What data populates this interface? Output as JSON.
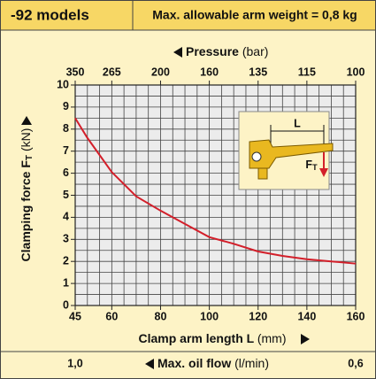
{
  "chart_data": {
    "type": "line",
    "header": {
      "model": "-92 models",
      "note": "Max. allowable arm weight = 0,8 kg"
    },
    "x_label": "Clamp arm length L",
    "x_unit": "(mm)",
    "y_label": "Clamping force F",
    "y_label_sub": "T",
    "y_unit": "(kN)",
    "x2_label": "Pressure",
    "x2_unit": "(bar)",
    "x3_label": "Max. oil flow",
    "x3_unit": "(l/min)",
    "xlim": [
      45,
      160
    ],
    "ylim": [
      0,
      10
    ],
    "xticks": [
      45,
      60,
      80,
      100,
      120,
      140,
      160
    ],
    "yticks": [
      0,
      1,
      2,
      3,
      4,
      5,
      6,
      7,
      8,
      9,
      10
    ],
    "x_grid": [
      45,
      50,
      55,
      60,
      65,
      70,
      75,
      80,
      85,
      90,
      95,
      100,
      105,
      110,
      115,
      120,
      125,
      130,
      135,
      140,
      145,
      150,
      155,
      160
    ],
    "y_grid": [
      0,
      0.5,
      1,
      1.5,
      2,
      2.5,
      3,
      3.5,
      4,
      4.5,
      5,
      5.5,
      6,
      6.5,
      7,
      7.5,
      8,
      8.5,
      9,
      9.5,
      10
    ],
    "x2ticks": [
      {
        "value": 45,
        "label": "350"
      },
      {
        "value": 60,
        "label": "265"
      },
      {
        "value": 80,
        "label": "200"
      },
      {
        "value": 100,
        "label": "160"
      },
      {
        "value": 120,
        "label": "135"
      },
      {
        "value": 140,
        "label": "115"
      },
      {
        "value": 160,
        "label": "100"
      }
    ],
    "x3ticks": [
      {
        "value": 45,
        "label": "1,0"
      },
      {
        "value": 160,
        "label": "0,6"
      }
    ],
    "x": [
      45,
      50,
      60,
      70,
      80,
      90,
      100,
      110,
      120,
      130,
      140,
      150,
      160
    ],
    "series": [
      {
        "color": "#d31f2a",
        "values": [
          8.5,
          7.6,
          6.05,
          4.95,
          4.3,
          3.7,
          3.1,
          2.8,
          2.45,
          2.25,
          2.1,
          2.0,
          1.9
        ]
      }
    ],
    "inset": {
      "length": "L",
      "force": "F",
      "force_sub": "T"
    }
  }
}
